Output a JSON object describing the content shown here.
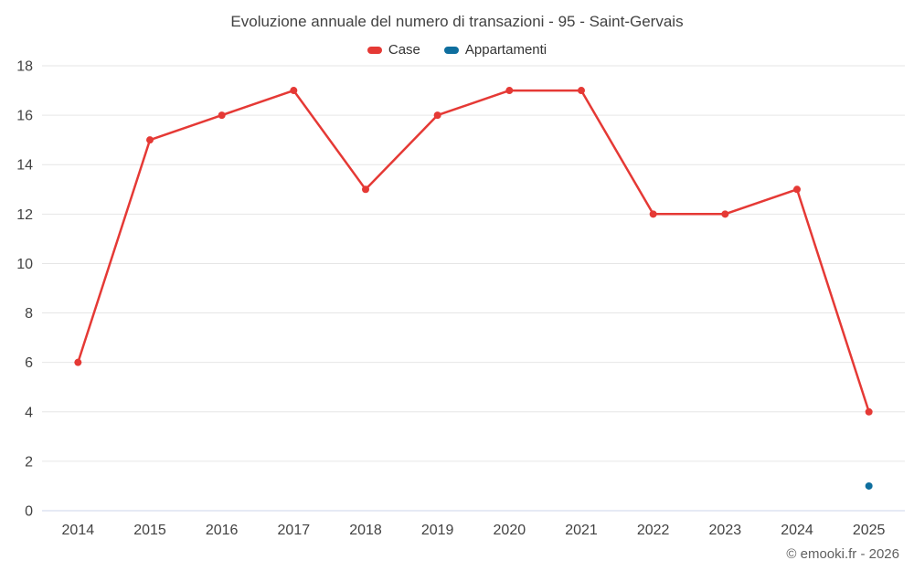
{
  "chart_data": {
    "type": "line",
    "title": "Evoluzione annuale del numero di transazioni - 95 - Saint-Gervais",
    "credits": "© emooki.fr - 2026",
    "categories": [
      "2014",
      "2015",
      "2016",
      "2017",
      "2018",
      "2019",
      "2020",
      "2021",
      "2022",
      "2023",
      "2024",
      "2025"
    ],
    "series": [
      {
        "name": "Case",
        "color": "#e53935",
        "values": [
          6,
          15,
          16,
          17,
          13,
          16,
          17,
          17,
          12,
          12,
          13,
          4
        ]
      },
      {
        "name": "Appartamenti",
        "color": "#0e6e9e",
        "values": [
          null,
          null,
          null,
          null,
          null,
          null,
          null,
          null,
          null,
          null,
          null,
          1
        ]
      }
    ],
    "xlabel": "",
    "ylabel": "",
    "ylim": [
      0,
      18
    ],
    "ytick_step": 2,
    "grid": true,
    "legend_position": "top",
    "colors": {
      "gridline": "#e6e6e6",
      "axis_line": "#ccd6eb",
      "axis_text": "#424242"
    }
  }
}
